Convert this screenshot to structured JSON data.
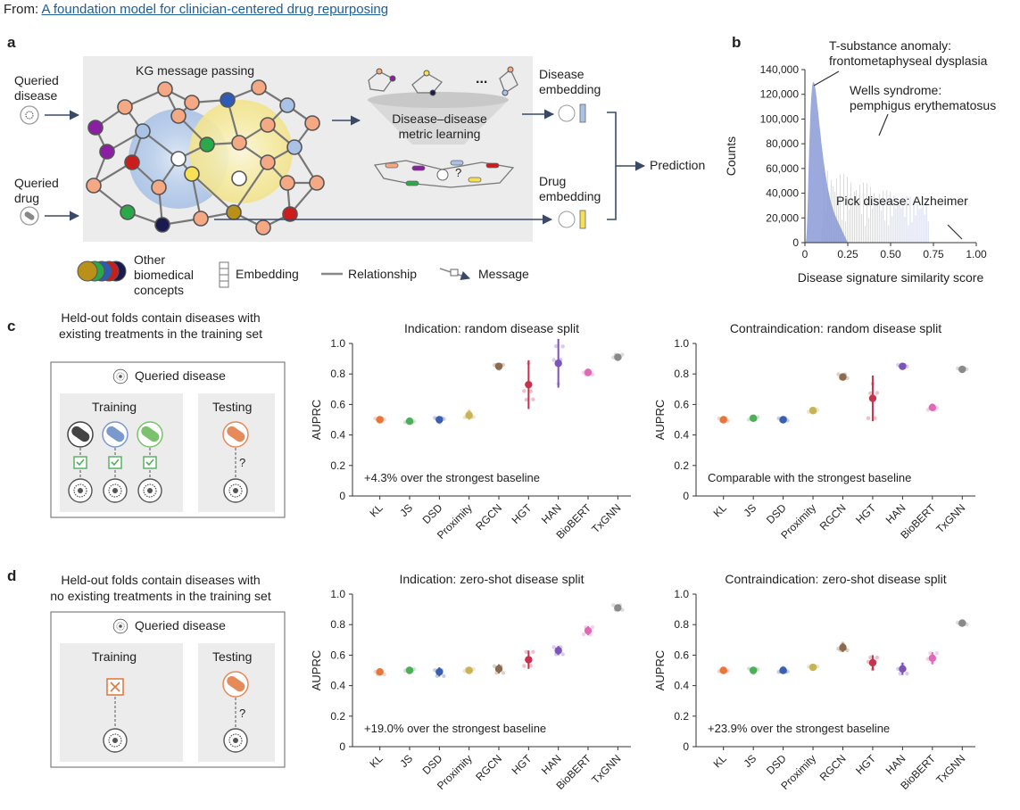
{
  "source": {
    "prefix": "From: ",
    "title": "A foundation model for clinician-centered drug repurposing"
  },
  "panels": {
    "a": "a",
    "b": "b",
    "c": "c",
    "d": "d"
  },
  "panel_a": {
    "queried_disease": [
      "Queried",
      "disease"
    ],
    "queried_drug": [
      "Queried",
      "drug"
    ],
    "kg_title": "KG message passing",
    "funnel": [
      "Disease–disease",
      "metric learning"
    ],
    "ellipsis": "...",
    "question": "?",
    "disease_embedding": [
      "Disease",
      "embedding"
    ],
    "drug_embedding": [
      "Drug",
      "embedding"
    ],
    "prediction": "Prediction",
    "legend": {
      "other": [
        "Other",
        "biomedical",
        "concepts"
      ],
      "embedding": "Embedding",
      "relationship": "Relationship",
      "message": "Message"
    }
  },
  "panel_b": {
    "ann1": [
      "T-substance anomaly:",
      "frontometaphyseal dysplasia"
    ],
    "ann2": [
      "Wells syndrome:",
      "pemphigus erythematosus"
    ],
    "ann3": "Pick disease: Alzheimer"
  },
  "panel_c": {
    "note": [
      "Held-out folds contain diseases with",
      "existing treatments in the training set"
    ],
    "queried": "Queried disease",
    "training": "Training",
    "testing": "Testing",
    "q": "?"
  },
  "panel_d": {
    "note": [
      "Held-out folds contain diseases with",
      "no existing treatments in the training set"
    ],
    "queried": "Queried disease",
    "training": "Training",
    "testing": "Testing",
    "q": "?"
  },
  "colors": {
    "KL": "#e8753a",
    "JS": "#4fae5a",
    "DSD": "#3b5fb0",
    "Proximity": "#c8b454",
    "RGCN": "#8c6a4f",
    "HGT": "#c8324b",
    "HAN": "#7d55b8",
    "BioBERT": "#e06ab8",
    "TxGNN": "#8a8a8a"
  },
  "chart_data": [
    {
      "type": "histogram",
      "panel": "b",
      "xlabel": "Disease signature similarity score",
      "ylabel": "Counts",
      "xlim": [
        0,
        1.0
      ],
      "ylim": [
        0,
        140000
      ],
      "xticks": [
        "0",
        "0.25",
        "0.50",
        "0.75",
        "1.00"
      ],
      "yticks": [
        "0",
        "20,000",
        "40,000",
        "60,000",
        "80,000",
        "100,000",
        "120,000",
        "140,000"
      ],
      "peak": {
        "x": 0.05,
        "y": 130000
      },
      "color": "#8a9ad6"
    },
    {
      "type": "scatter",
      "panel": "c",
      "title": "Indication: random disease split",
      "ylabel": "AUPRC",
      "ylim": [
        0,
        1.0
      ],
      "yticks": [
        "0",
        "0.2",
        "0.4",
        "0.6",
        "0.8",
        "1.0"
      ],
      "categories": [
        "KL",
        "JS",
        "DSD",
        "Proximity",
        "RGCN",
        "HGT",
        "HAN",
        "BioBERT",
        "TxGNN"
      ],
      "means": [
        0.5,
        0.49,
        0.5,
        0.53,
        0.85,
        0.73,
        0.87,
        0.81,
        0.91
      ],
      "errors": [
        0.01,
        0.01,
        0.02,
        0.03,
        0.02,
        0.16,
        0.16,
        0.02,
        0.02
      ],
      "annotation": "+4.3% over the strongest baseline"
    },
    {
      "type": "scatter",
      "panel": "c",
      "title": "Contraindication: random disease split",
      "ylabel": "AUPRC",
      "ylim": [
        0,
        1.0
      ],
      "yticks": [
        "0",
        "0.2",
        "0.4",
        "0.6",
        "0.8",
        "1.0"
      ],
      "categories": [
        "KL",
        "JS",
        "DSD",
        "Proximity",
        "RGCN",
        "HGT",
        "HAN",
        "BioBERT",
        "TxGNN"
      ],
      "means": [
        0.5,
        0.51,
        0.5,
        0.56,
        0.78,
        0.64,
        0.85,
        0.58,
        0.83
      ],
      "errors": [
        0.01,
        0.01,
        0.01,
        0.01,
        0.02,
        0.15,
        0.01,
        0.02,
        0.01
      ],
      "annotation": "Comparable with the strongest baseline"
    },
    {
      "type": "scatter",
      "panel": "d",
      "title": "Indication: zero-shot disease split",
      "ylabel": "AUPRC",
      "ylim": [
        0,
        1.0
      ],
      "yticks": [
        "0",
        "0.2",
        "0.4",
        "0.6",
        "0.8",
        "1.0"
      ],
      "categories": [
        "KL",
        "JS",
        "DSD",
        "Proximity",
        "RGCN",
        "HGT",
        "HAN",
        "BioBERT",
        "TxGNN"
      ],
      "means": [
        0.49,
        0.5,
        0.49,
        0.5,
        0.51,
        0.57,
        0.63,
        0.76,
        0.91
      ],
      "errors": [
        0.02,
        0.01,
        0.03,
        0.01,
        0.03,
        0.06,
        0.03,
        0.03,
        0.02
      ],
      "annotation": "+19.0% over the strongest baseline"
    },
    {
      "type": "scatter",
      "panel": "d",
      "title": "Contraindication: zero-shot disease split",
      "ylabel": "AUPRC",
      "ylim": [
        0,
        1.0
      ],
      "yticks": [
        "0",
        "0.2",
        "0.4",
        "0.6",
        "0.8",
        "1.0"
      ],
      "categories": [
        "KL",
        "JS",
        "DSD",
        "Proximity",
        "RGCN",
        "HGT",
        "HAN",
        "BioBERT",
        "TxGNN"
      ],
      "means": [
        0.5,
        0.5,
        0.5,
        0.52,
        0.65,
        0.55,
        0.51,
        0.58,
        0.81
      ],
      "errors": [
        0.01,
        0.02,
        0.02,
        0.01,
        0.03,
        0.05,
        0.04,
        0.04,
        0.01
      ],
      "annotation": "+23.9% over the strongest baseline"
    }
  ]
}
